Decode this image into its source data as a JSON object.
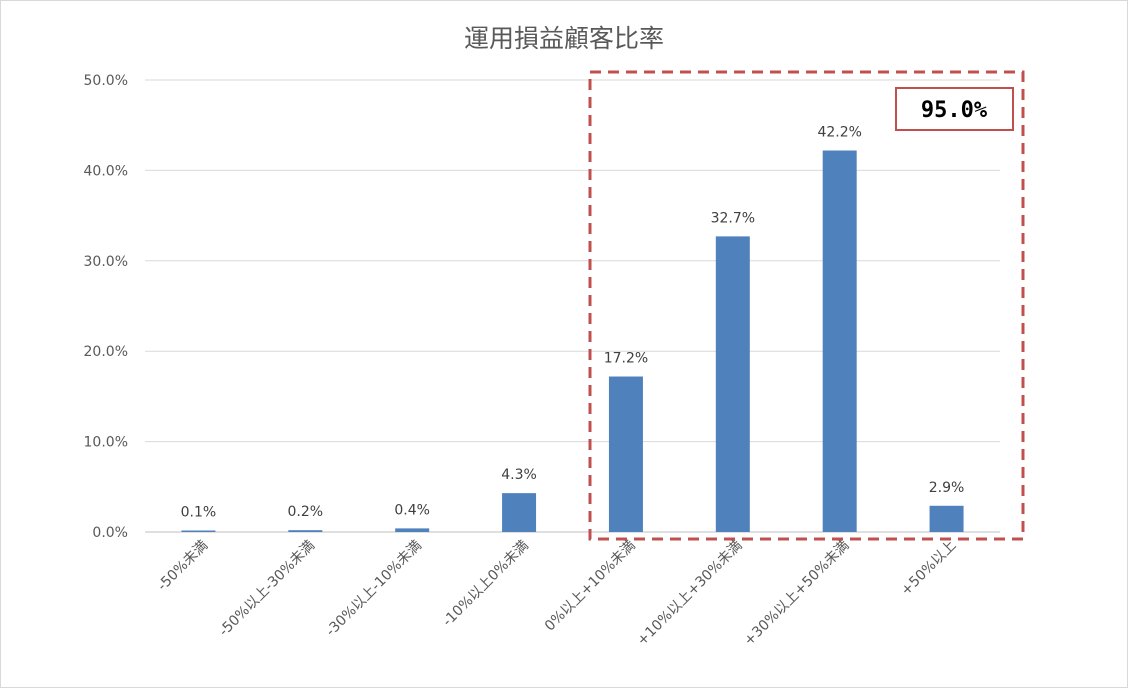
{
  "chart_data": {
    "type": "bar",
    "title": "運用損益顧客比率",
    "xlabel": "",
    "ylabel": "",
    "categories": [
      "-50%未満",
      "-50%以上-30%未満",
      "-30%以上-10%未満",
      "-10%以上0%未満",
      "0%以上+10%未満",
      "+10%以上+30%未満",
      "+30%以上+50%未満",
      "+50%以上"
    ],
    "values": [
      0.1,
      0.2,
      0.4,
      4.3,
      17.2,
      32.7,
      42.2,
      2.9
    ],
    "value_labels": [
      "0.1%",
      "0.2%",
      "0.4%",
      "4.3%",
      "17.2%",
      "32.7%",
      "42.2%",
      "2.9%"
    ],
    "ylim": [
      0,
      50
    ],
    "y_ticks": [
      0,
      10,
      20,
      30,
      40,
      50
    ],
    "y_tick_labels": [
      "0.0%",
      "10.0%",
      "20.0%",
      "30.0%",
      "40.0%",
      "50.0%"
    ],
    "grid": true,
    "legend": "none",
    "bar_color": "#4f81bd",
    "highlight": {
      "from_category_index": 4,
      "to_category_index": 7,
      "label": "95.0%",
      "border_color": "#c0504d"
    }
  }
}
